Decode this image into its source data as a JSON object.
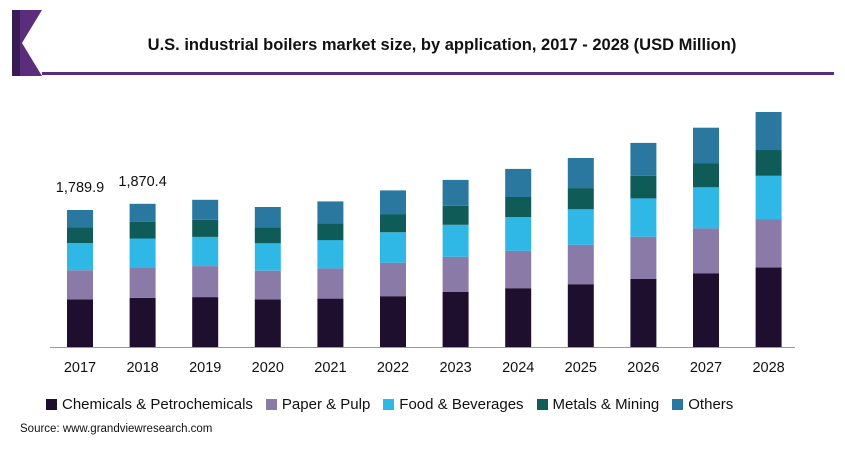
{
  "title": "U.S. industrial boilers market size, by application, 2017 - 2028 (USD Million)",
  "source": "Source: www.grandviewresearch.com",
  "colors": {
    "chemicals": "#1f0f2e",
    "paper": "#8a7aa8",
    "food": "#2fb7e5",
    "metals": "#0e5b58",
    "others": "#2a78a0",
    "title_rule": "#5a2e7d",
    "axis": "#999999"
  },
  "chart_data": {
    "type": "bar",
    "stacked": true,
    "title": "U.S. industrial boilers market size, by application, 2017 - 2028 (USD Million)",
    "xlabel": "",
    "ylabel": "",
    "categories": [
      "2017",
      "2018",
      "2019",
      "2020",
      "2021",
      "2022",
      "2023",
      "2024",
      "2025",
      "2026",
      "2027",
      "2028"
    ],
    "series": [
      {
        "name": "Chemicals & Petrochemicals",
        "color_key": "chemicals",
        "values": [
          623,
          642,
          652,
          622,
          632,
          664,
          718,
          768,
          820,
          889,
          960,
          1039
        ]
      },
      {
        "name": "Paper & Pulp",
        "color_key": "paper",
        "values": [
          380,
          400,
          405,
          375,
          394,
          437,
          460,
          488,
          515,
          552,
          589,
          626
        ]
      },
      {
        "name": "Food & Beverages",
        "color_key": "food",
        "values": [
          354,
          375,
          382,
          357,
          371,
          396,
          418,
          442,
          466,
          501,
          537,
          571
        ]
      },
      {
        "name": "Metals & Mining",
        "color_key": "metals",
        "values": [
          206,
          219,
          223,
          208,
          218,
          233,
          246,
          261,
          275,
          296,
          316,
          337
        ]
      },
      {
        "name": "Others",
        "color_key": "others",
        "values": [
          227,
          235,
          261,
          266,
          287,
          315,
          340,
          367,
          393,
          428,
          462,
          497
        ]
      }
    ],
    "data_labels": [
      {
        "category": "2017",
        "text": "1,789.9"
      },
      {
        "category": "2018",
        "text": "1,870.4"
      }
    ],
    "ylim": [
      0,
      3200
    ],
    "grid": false,
    "legend_position": "bottom"
  }
}
